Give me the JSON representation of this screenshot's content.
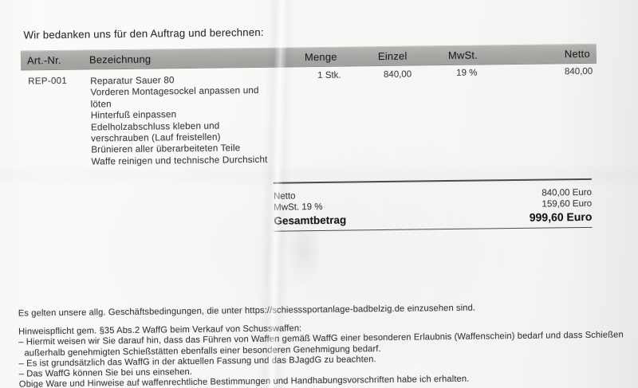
{
  "page": {
    "intro_line": "Wir bedanken uns für den Auftrag und berechnen:"
  },
  "invoice_table": {
    "columns": [
      {
        "key": "art_nr",
        "label": "Art.-Nr."
      },
      {
        "key": "bezeichnung",
        "label": "Bezeichnung"
      },
      {
        "key": "menge",
        "label": "Menge"
      },
      {
        "key": "einzel",
        "label": "Einzel"
      },
      {
        "key": "mwst",
        "label": "MwSt."
      },
      {
        "key": "netto",
        "label": "Netto"
      }
    ],
    "rows": [
      {
        "art_nr": "REP-001",
        "description_lines": [
          "Reparatur Sauer 80",
          "Vorderen Montagesockel anpassen und",
          "löten",
          "Hinterfuß einpassen",
          "Edelholzabschluss kleben und",
          "verschrauben (Lauf freistellen)",
          "Brünieren aller überarbeiteten Teile",
          "Waffe reinigen und technische Durchsicht"
        ],
        "menge": "1 Stk.",
        "einzel": "840,00",
        "mwst": "19 %",
        "netto": "840,00"
      }
    ]
  },
  "totals": {
    "rows": [
      {
        "label": "Netto",
        "value": "840,00 Euro"
      },
      {
        "label": "MwSt. 19 %",
        "value": "159,60 Euro"
      },
      {
        "label": "Gesamtbetrag",
        "value": "999,60 Euro"
      }
    ]
  },
  "footer": {
    "terms_line": "Es gelten unsere allg. Geschäftsbedingungen, die unter https://schiesssportanlage-badbelzig.de einzusehen sind.",
    "notice_heading": "Hinweispflicht gem. §35 Abs.2 WaffG beim Verkauf von Schusswaffen:",
    "notice_lines": [
      "– Hiermit weisen wir Sie darauf hin, dass das Führen von Waffen gemäß WaffG einer besonderen Erlaubnis (Waffenschein) bedarf und dass Schießen",
      "außerhalb genehmigten Schießstätten ebenfalls einer besonderen Genehmigung bedarf.",
      "– Es ist grundsätzlich das WaffG in der aktuellen Fassung und das BJagdG zu beachten.",
      "– Das WaffG können Sie bei uns einsehen."
    ],
    "confirmation_line": "Obige Ware und Hinweise auf waffenrechtliche Bestimmungen und Handhabungsvorschriften habe ich erhalten."
  },
  "colors": {
    "paper": "#f8f8f6",
    "header_bar": "#a9a7a4",
    "text": "#3a3a3a",
    "rule": "#4d4d4d"
  }
}
